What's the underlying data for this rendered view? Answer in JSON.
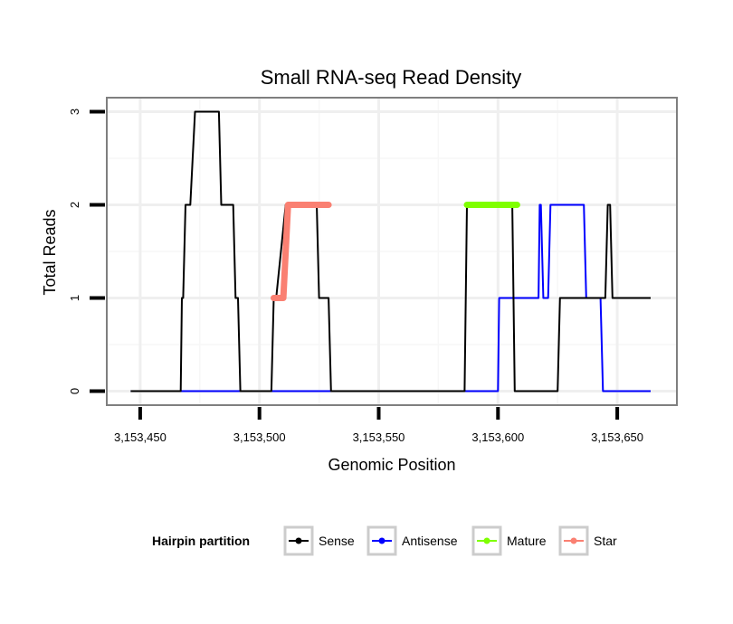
{
  "chart_data": {
    "type": "line",
    "title": "Small RNA-seq Read Density",
    "xlabel": "Genomic Position",
    "ylabel": "Total Reads",
    "xlim": [
      3153436,
      3153675
    ],
    "ylim": [
      -0.15,
      3.15
    ],
    "x_ticks": [
      3153450,
      3153500,
      3153550,
      3153600,
      3153650
    ],
    "x_tick_labels": [
      "3,153,450",
      "3,153,500",
      "3,153,550",
      "3,153,600",
      "3,153,650"
    ],
    "y_ticks": [
      0,
      1,
      2,
      3
    ],
    "y_tick_labels": [
      "0",
      "1",
      "2",
      "3"
    ],
    "legend": {
      "title": "Hairpin partition",
      "position": "bottom",
      "entries": [
        {
          "name": "Sense",
          "color": "#000000"
        },
        {
          "name": "Antisense",
          "color": "#0000ff"
        },
        {
          "name": "Mature",
          "color": "#7fff00"
        },
        {
          "name": "Star",
          "color": "#fa8072"
        }
      ]
    },
    "series": [
      {
        "name": "Sense",
        "color": "#000000",
        "points": [
          [
            3153446,
            0
          ],
          [
            3153467,
            0
          ],
          [
            3153467.5,
            1
          ],
          [
            3153468,
            1
          ],
          [
            3153469,
            2
          ],
          [
            3153471,
            2
          ],
          [
            3153473,
            3
          ],
          [
            3153483,
            3
          ],
          [
            3153484,
            2
          ],
          [
            3153489,
            2
          ],
          [
            3153490,
            1
          ],
          [
            3153491,
            1
          ],
          [
            3153492,
            0
          ],
          [
            3153505,
            0
          ],
          [
            3153506,
            1
          ],
          [
            3153507,
            1
          ],
          [
            3153511,
            2
          ],
          [
            3153524,
            2
          ],
          [
            3153525,
            1
          ],
          [
            3153529,
            1
          ],
          [
            3153530,
            0
          ],
          [
            3153586,
            0
          ],
          [
            3153587,
            2
          ],
          [
            3153606,
            2
          ],
          [
            3153607,
            0
          ],
          [
            3153625,
            0
          ],
          [
            3153626,
            1
          ],
          [
            3153645,
            1
          ],
          [
            3153646,
            2
          ],
          [
            3153647,
            2
          ],
          [
            3153648,
            1
          ],
          [
            3153664,
            1
          ]
        ]
      },
      {
        "name": "Antisense",
        "color": "#0000ff",
        "points": [
          [
            3153446,
            0
          ],
          [
            3153600,
            0
          ],
          [
            3153600.5,
            1
          ],
          [
            3153617,
            1
          ],
          [
            3153617.5,
            2
          ],
          [
            3153618,
            2
          ],
          [
            3153619,
            1
          ],
          [
            3153621,
            1
          ],
          [
            3153622,
            2
          ],
          [
            3153636,
            2
          ],
          [
            3153637,
            1
          ],
          [
            3153643,
            1
          ],
          [
            3153644,
            0
          ],
          [
            3153664,
            0
          ]
        ]
      },
      {
        "name": "Mature",
        "color": "#7fff00",
        "points": [
          [
            3153587,
            2
          ],
          [
            3153608,
            2
          ]
        ]
      },
      {
        "name": "Star",
        "color": "#fa8072",
        "points": [
          [
            3153506,
            1
          ],
          [
            3153510,
            1
          ],
          [
            3153512,
            2
          ],
          [
            3153529,
            2
          ]
        ]
      }
    ]
  }
}
